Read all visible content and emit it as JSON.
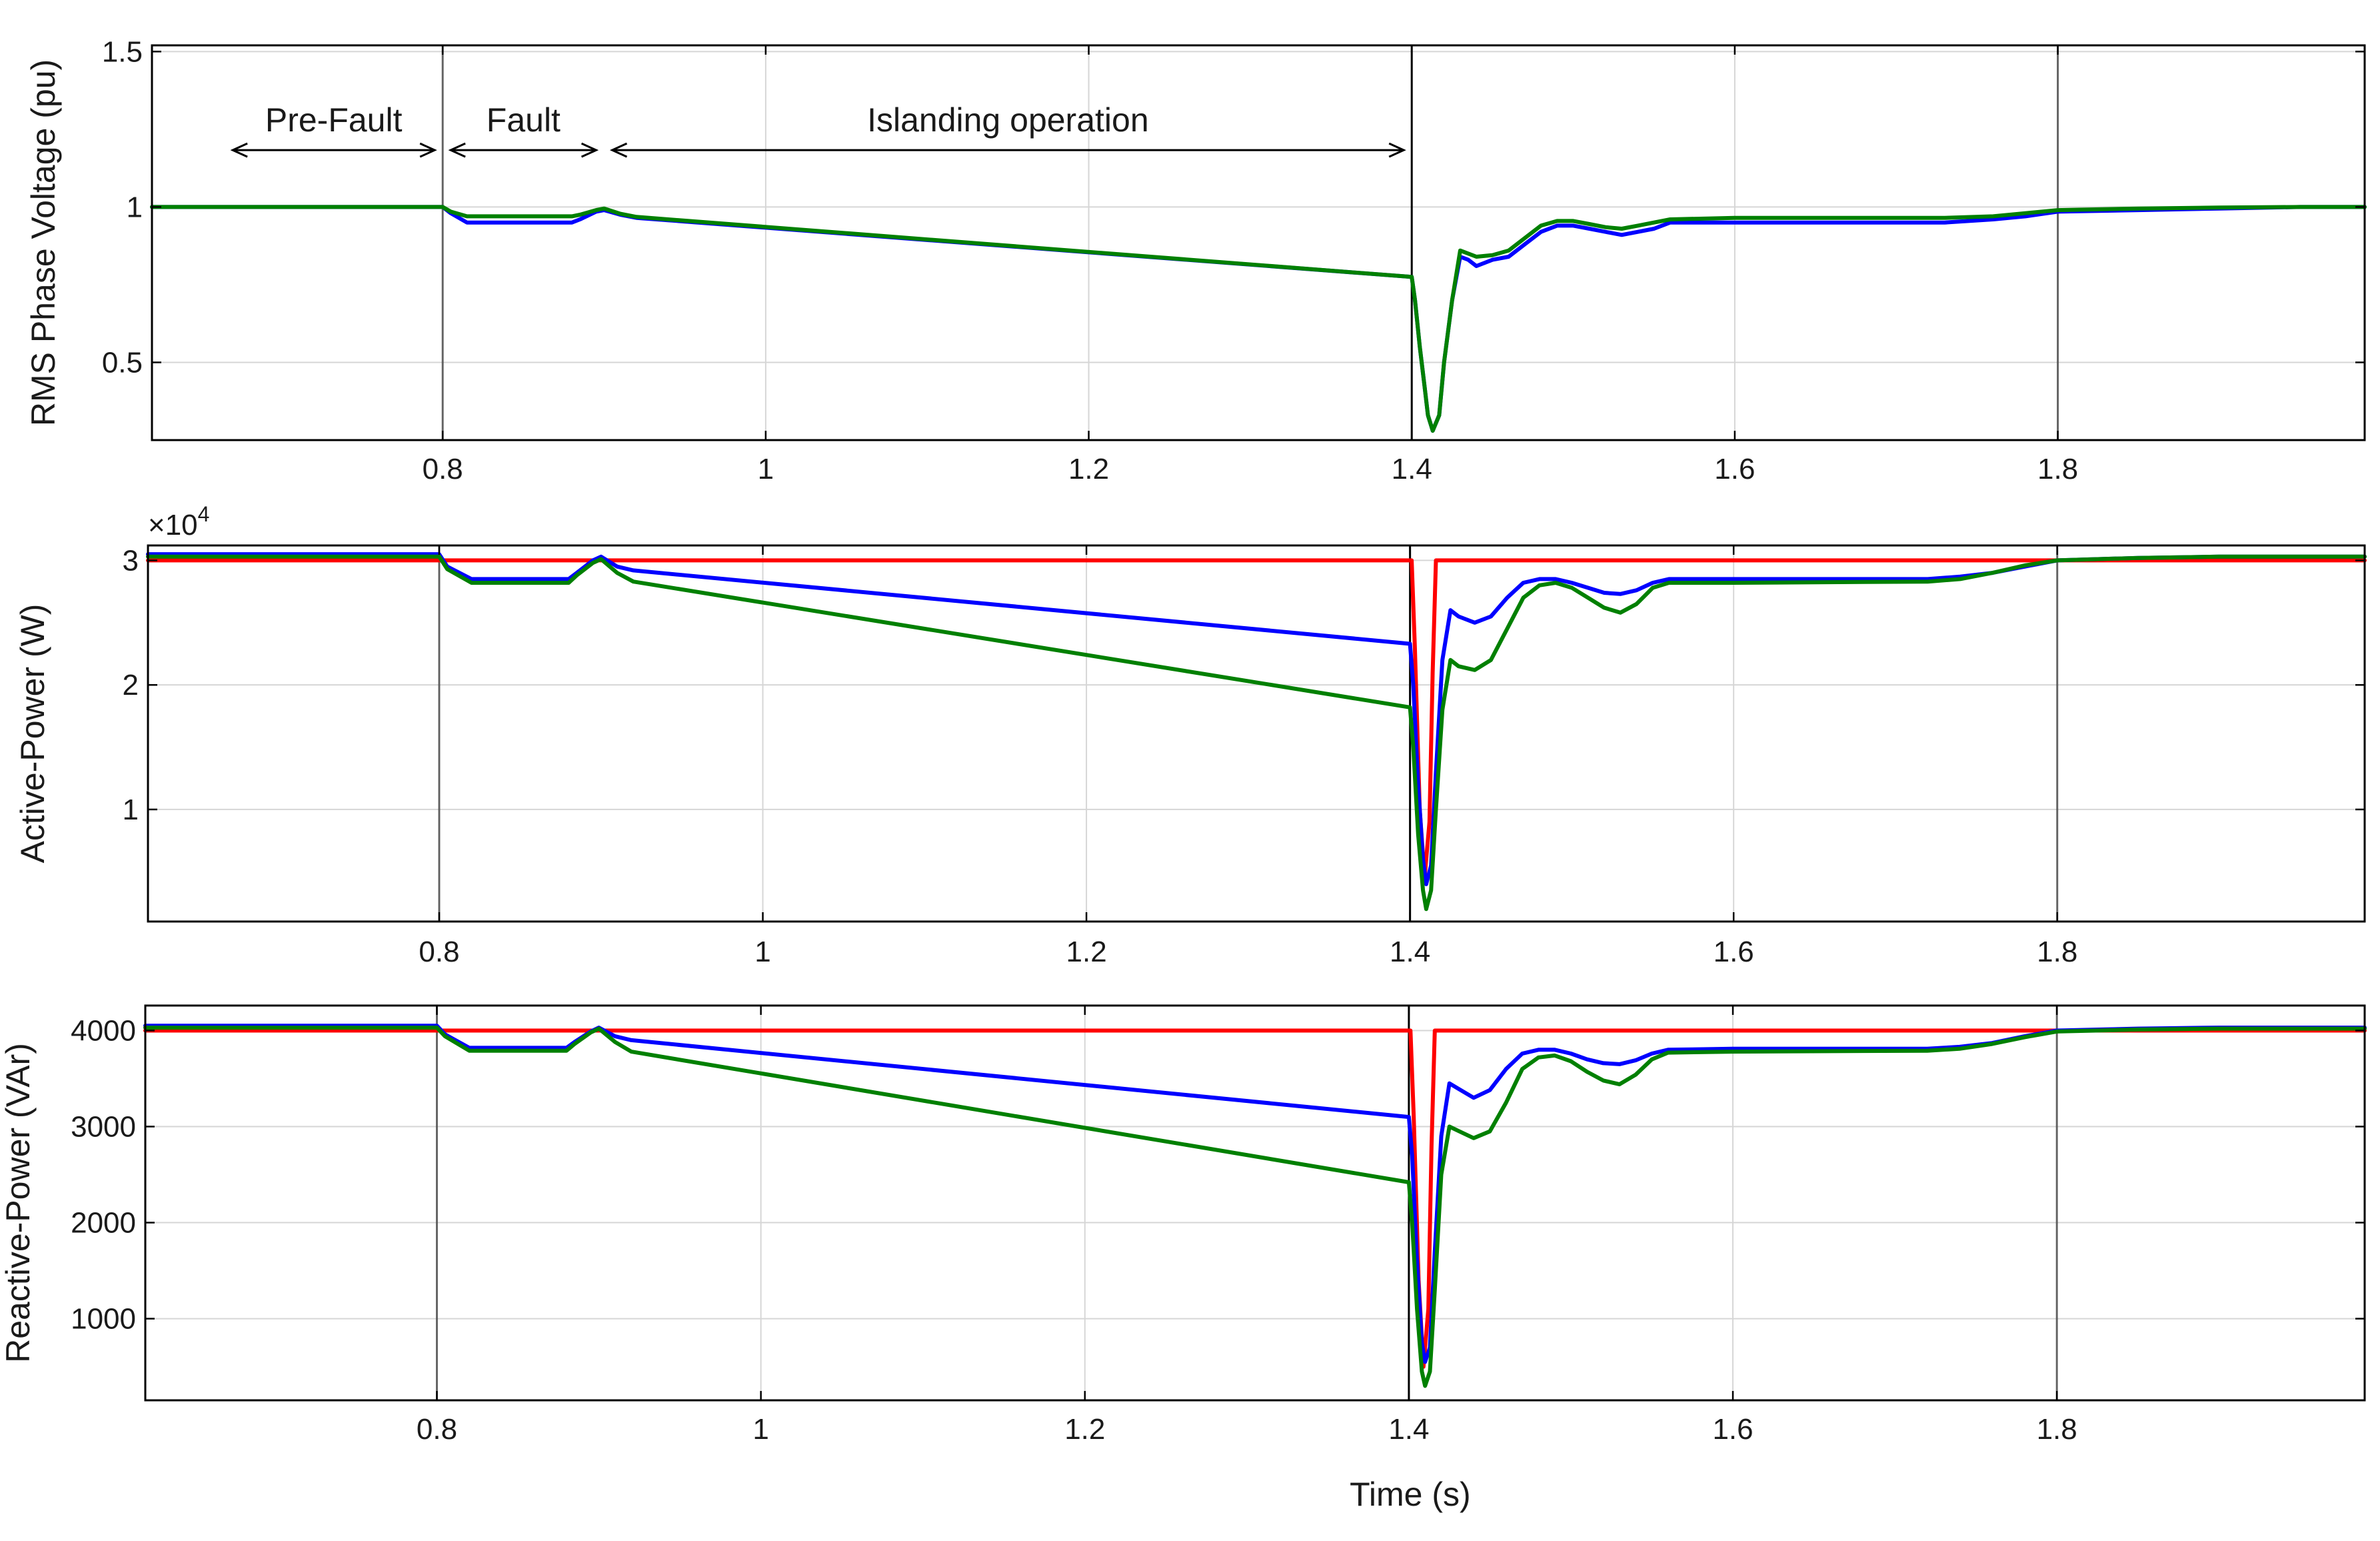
{
  "chart_data": [
    {
      "type": "line",
      "id": "voltage",
      "ylabel": "RMS Phase Voltage (pu)",
      "xlabel": "",
      "xlim": [
        0.62,
        1.99
      ],
      "ylim": [
        0.25,
        1.52
      ],
      "xticks": [
        0.8,
        1,
        1.2,
        1.4,
        1.6,
        1.8
      ],
      "xtick_labels": [
        "0.8",
        "1",
        "1.2",
        "1.4",
        "1.6",
        "1.8"
      ],
      "yticks": [
        0.5,
        1,
        1.5
      ],
      "ytick_labels": [
        "0.5",
        "1",
        "1.5"
      ],
      "grid": true,
      "annotations": [
        {
          "text": "Pre-Fault",
          "x_start": 0.67,
          "x_end": 0.8,
          "y": 1.2
        },
        {
          "text": "Fault",
          "x_start": 0.8,
          "x_end": 0.9,
          "y": 1.2
        },
        {
          "text": "Islanding operation",
          "x_start": 0.9,
          "x_end": 1.4,
          "y": 1.2
        }
      ],
      "series": [
        {
          "name": "blue",
          "color": "#0000ff",
          "x": [
            0.62,
            0.8,
            0.805,
            0.815,
            0.88,
            0.885,
            0.895,
            0.9,
            0.91,
            0.92,
            1.4,
            1.402,
            1.405,
            1.408,
            1.41,
            1.413,
            1.417,
            1.42,
            1.425,
            1.43,
            1.435,
            1.44,
            1.45,
            1.46,
            1.47,
            1.48,
            1.49,
            1.5,
            1.51,
            1.52,
            1.53,
            1.54,
            1.55,
            1.56,
            1.6,
            1.7,
            1.73,
            1.76,
            1.78,
            1.8,
            1.85,
            1.9,
            1.95,
            1.99
          ],
          "y": [
            1.0,
            1.0,
            0.98,
            0.95,
            0.95,
            0.96,
            0.985,
            0.99,
            0.975,
            0.965,
            0.775,
            0.7,
            0.55,
            0.42,
            0.33,
            0.28,
            0.33,
            0.5,
            0.7,
            0.84,
            0.83,
            0.81,
            0.83,
            0.84,
            0.88,
            0.92,
            0.94,
            0.94,
            0.93,
            0.92,
            0.91,
            0.92,
            0.93,
            0.95,
            0.95,
            0.95,
            0.95,
            0.96,
            0.97,
            0.985,
            0.99,
            0.995,
            1.0,
            1.0
          ]
        },
        {
          "name": "green",
          "color": "#008000",
          "x": [
            0.62,
            0.8,
            0.805,
            0.815,
            0.88,
            0.885,
            0.895,
            0.9,
            0.91,
            0.92,
            1.4,
            1.402,
            1.405,
            1.408,
            1.41,
            1.413,
            1.417,
            1.42,
            1.425,
            1.43,
            1.435,
            1.44,
            1.45,
            1.46,
            1.47,
            1.48,
            1.49,
            1.5,
            1.51,
            1.52,
            1.53,
            1.54,
            1.55,
            1.56,
            1.6,
            1.7,
            1.73,
            1.76,
            1.78,
            1.8,
            1.85,
            1.9,
            1.95,
            1.99
          ],
          "y": [
            1.0,
            1.0,
            0.985,
            0.97,
            0.97,
            0.975,
            0.99,
            0.995,
            0.978,
            0.968,
            0.775,
            0.7,
            0.55,
            0.42,
            0.33,
            0.28,
            0.33,
            0.5,
            0.7,
            0.86,
            0.85,
            0.84,
            0.845,
            0.86,
            0.9,
            0.94,
            0.955,
            0.955,
            0.945,
            0.935,
            0.93,
            0.94,
            0.95,
            0.96,
            0.965,
            0.965,
            0.965,
            0.97,
            0.98,
            0.99,
            0.995,
            0.998,
            1.0,
            1.0
          ]
        }
      ]
    },
    {
      "type": "line",
      "id": "active",
      "ylabel": "Active-Power (W)",
      "xlabel": "",
      "exponent_label": "×10",
      "exponent_power": "4",
      "xlim": [
        0.62,
        1.99
      ],
      "ylim": [
        0.1,
        3.12
      ],
      "xticks": [
        0.8,
        1,
        1.2,
        1.4,
        1.6,
        1.8
      ],
      "xtick_labels": [
        "0.8",
        "1",
        "1.2",
        "1.4",
        "1.6",
        "1.8"
      ],
      "yticks": [
        1,
        2,
        3
      ],
      "ytick_labels": [
        "1",
        "2",
        "3"
      ],
      "grid": true,
      "series": [
        {
          "name": "red",
          "color": "#ff0000",
          "x": [
            0.62,
            1.401,
            1.403,
            1.406,
            1.409,
            1.412,
            1.414,
            1.416,
            1.99
          ],
          "y": [
            3.0,
            3.0,
            2.3,
            1.0,
            0.45,
            0.9,
            2.1,
            3.0,
            3.0
          ]
        },
        {
          "name": "blue",
          "color": "#0000ff",
          "x": [
            0.62,
            0.8,
            0.805,
            0.82,
            0.88,
            0.885,
            0.895,
            0.9,
            0.91,
            0.92,
            1.4,
            1.402,
            1.405,
            1.408,
            1.41,
            1.413,
            1.416,
            1.42,
            1.425,
            1.43,
            1.44,
            1.45,
            1.46,
            1.47,
            1.48,
            1.49,
            1.5,
            1.51,
            1.52,
            1.53,
            1.54,
            1.55,
            1.56,
            1.6,
            1.72,
            1.74,
            1.76,
            1.78,
            1.8,
            1.85,
            1.9,
            1.95,
            1.99
          ],
          "y": [
            3.05,
            3.05,
            2.95,
            2.85,
            2.85,
            2.9,
            3.0,
            3.03,
            2.95,
            2.92,
            2.33,
            2.0,
            1.2,
            0.6,
            0.4,
            0.55,
            1.3,
            2.2,
            2.6,
            2.55,
            2.5,
            2.55,
            2.7,
            2.82,
            2.85,
            2.85,
            2.82,
            2.78,
            2.74,
            2.73,
            2.76,
            2.82,
            2.85,
            2.85,
            2.85,
            2.87,
            2.9,
            2.95,
            3.0,
            3.02,
            3.03,
            3.03,
            3.03
          ]
        },
        {
          "name": "green",
          "color": "#008000",
          "x": [
            0.62,
            0.8,
            0.805,
            0.82,
            0.88,
            0.885,
            0.895,
            0.9,
            0.91,
            0.92,
            1.4,
            1.402,
            1.405,
            1.408,
            1.41,
            1.413,
            1.416,
            1.42,
            1.425,
            1.43,
            1.44,
            1.45,
            1.46,
            1.47,
            1.48,
            1.49,
            1.5,
            1.51,
            1.52,
            1.53,
            1.54,
            1.55,
            1.56,
            1.6,
            1.72,
            1.74,
            1.76,
            1.78,
            1.8,
            1.85,
            1.9,
            1.95,
            1.99
          ],
          "y": [
            3.03,
            3.03,
            2.93,
            2.82,
            2.82,
            2.88,
            2.98,
            3.01,
            2.9,
            2.83,
            1.82,
            1.5,
            0.8,
            0.35,
            0.2,
            0.35,
            1.0,
            1.8,
            2.2,
            2.15,
            2.12,
            2.2,
            2.45,
            2.7,
            2.8,
            2.82,
            2.78,
            2.7,
            2.62,
            2.58,
            2.65,
            2.78,
            2.82,
            2.82,
            2.83,
            2.85,
            2.9,
            2.96,
            3.0,
            3.02,
            3.03,
            3.03,
            3.03
          ]
        }
      ]
    },
    {
      "type": "line",
      "id": "reactive",
      "ylabel": "Reactive-Power (VAr)",
      "xlabel": "Time (s)",
      "xlim": [
        0.62,
        1.99
      ],
      "ylim": [
        150,
        4260
      ],
      "xticks": [
        0.8,
        1,
        1.2,
        1.4,
        1.6,
        1.8
      ],
      "xtick_labels": [
        "0.8",
        "1",
        "1.2",
        "1.4",
        "1.6",
        "1.8"
      ],
      "yticks": [
        1000,
        2000,
        3000,
        4000
      ],
      "ytick_labels": [
        "1000",
        "2000",
        "3000",
        "4000"
      ],
      "grid": true,
      "series": [
        {
          "name": "red",
          "color": "#ff0000",
          "x": [
            0.62,
            1.401,
            1.403,
            1.406,
            1.409,
            1.412,
            1.414,
            1.416,
            1.99
          ],
          "y": [
            4000,
            4000,
            3100,
            1400,
            500,
            1100,
            2800,
            4000,
            4000
          ]
        },
        {
          "name": "blue",
          "color": "#0000ff",
          "x": [
            0.62,
            0.8,
            0.805,
            0.82,
            0.88,
            0.885,
            0.895,
            0.9,
            0.91,
            0.92,
            1.4,
            1.402,
            1.405,
            1.408,
            1.41,
            1.413,
            1.416,
            1.42,
            1.425,
            1.43,
            1.44,
            1.45,
            1.46,
            1.47,
            1.48,
            1.49,
            1.5,
            1.51,
            1.52,
            1.53,
            1.54,
            1.55,
            1.56,
            1.6,
            1.72,
            1.74,
            1.76,
            1.78,
            1.8,
            1.85,
            1.9,
            1.95,
            1.99
          ],
          "y": [
            4050,
            4050,
            3960,
            3820,
            3820,
            3880,
            3990,
            4030,
            3940,
            3900,
            3100,
            2700,
            1600,
            750,
            550,
            700,
            1700,
            2900,
            3450,
            3400,
            3300,
            3380,
            3600,
            3760,
            3800,
            3800,
            3760,
            3700,
            3660,
            3650,
            3690,
            3760,
            3800,
            3810,
            3810,
            3830,
            3870,
            3940,
            4000,
            4020,
            4030,
            4030,
            4030
          ]
        },
        {
          "name": "green",
          "color": "#008000",
          "x": [
            0.62,
            0.8,
            0.805,
            0.82,
            0.88,
            0.885,
            0.895,
            0.9,
            0.91,
            0.92,
            1.4,
            1.402,
            1.405,
            1.408,
            1.41,
            1.413,
            1.416,
            1.42,
            1.425,
            1.43,
            1.44,
            1.45,
            1.46,
            1.47,
            1.48,
            1.49,
            1.5,
            1.51,
            1.52,
            1.53,
            1.54,
            1.55,
            1.56,
            1.6,
            1.72,
            1.74,
            1.76,
            1.78,
            1.8,
            1.85,
            1.9,
            1.95,
            1.99
          ],
          "y": [
            4030,
            4030,
            3940,
            3790,
            3790,
            3860,
            3980,
            4020,
            3880,
            3780,
            2420,
            2000,
            1100,
            450,
            300,
            450,
            1300,
            2500,
            3000,
            2960,
            2880,
            2950,
            3250,
            3600,
            3720,
            3740,
            3680,
            3570,
            3480,
            3440,
            3540,
            3700,
            3770,
            3780,
            3790,
            3810,
            3860,
            3930,
            3990,
            4010,
            4020,
            4020,
            4020
          ]
        }
      ]
    }
  ]
}
